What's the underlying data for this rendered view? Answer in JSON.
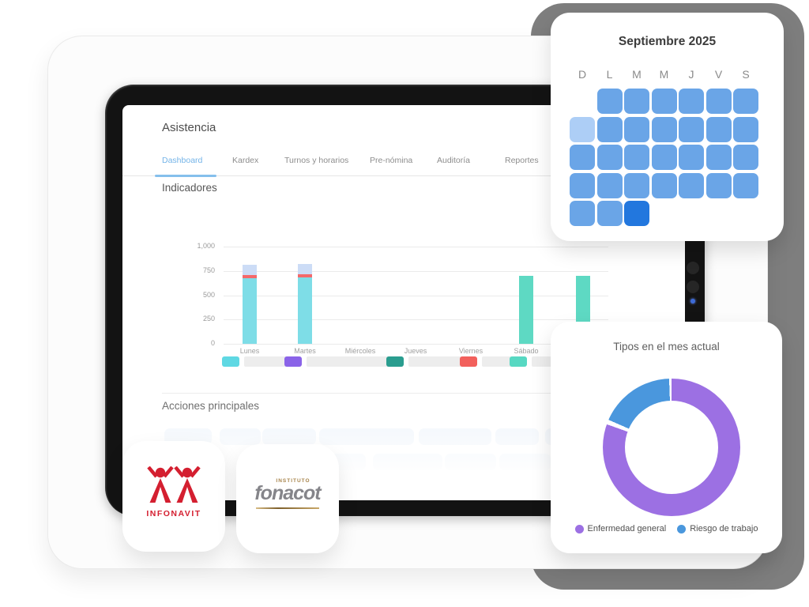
{
  "page": {
    "background": "#ffffff",
    "shadow_color": "#7e7e7e"
  },
  "dashboard": {
    "title": "Asistencia",
    "tabs": [
      {
        "label": "Dashboard",
        "active": true
      },
      {
        "label": "Kardex",
        "active": false
      },
      {
        "label": "Turnos y horarios",
        "active": false
      },
      {
        "label": "Pre-nómina",
        "active": false
      },
      {
        "label": "Auditoría",
        "active": false
      },
      {
        "label": "Reportes",
        "active": false
      }
    ],
    "active_tab_color": "#74b4e8",
    "sections": {
      "indicators": "Indicadores",
      "actions": "Acciones principales"
    }
  },
  "chart_data": {
    "type": "bar",
    "stacked": true,
    "title": "",
    "categories": [
      "Lunes",
      "Martes",
      "Miércoles",
      "Jueves",
      "Viernes",
      "Sábado",
      ""
    ],
    "series": [
      {
        "name": "",
        "color": "#7edde7",
        "values": [
          675,
          680,
          0,
          0,
          0,
          0,
          0
        ]
      },
      {
        "name": "",
        "color": "#f4696b",
        "values": [
          35,
          35,
          0,
          0,
          0,
          0,
          0
        ]
      },
      {
        "name": "",
        "color": "#ccdcf6",
        "values": [
          105,
          105,
          0,
          0,
          0,
          0,
          0
        ]
      },
      {
        "name": "",
        "color": "#5ed9c3",
        "values": [
          0,
          0,
          0,
          0,
          0,
          700,
          700
        ]
      }
    ],
    "ylim": [
      0,
      1000
    ],
    "yticks": [
      "0",
      "250",
      "500",
      "750",
      "1,000"
    ],
    "grid": true,
    "legend_chip_colors": [
      "#5fd8e3",
      "#8a63e8",
      "#2a9d8f",
      "#f2605c",
      "#57d8c2"
    ],
    "legend_labels_visible": false
  },
  "calendar_card": {
    "title": "Septiembre 2025",
    "day_headers": [
      "D",
      "L",
      "M",
      "M",
      "J",
      "V",
      "S"
    ],
    "cell_colors": {
      "mid": "#6aa5e7",
      "light": "#adcef6",
      "dark": "#2277de"
    },
    "weeks": [
      [
        "none",
        "mid",
        "mid",
        "mid",
        "mid",
        "mid",
        "mid"
      ],
      [
        "light",
        "mid",
        "mid",
        "mid",
        "mid",
        "mid",
        "mid"
      ],
      [
        "mid",
        "mid",
        "mid",
        "mid",
        "mid",
        "mid",
        "mid"
      ],
      [
        "mid",
        "mid",
        "mid",
        "mid",
        "mid",
        "mid",
        "mid"
      ],
      [
        "mid",
        "mid",
        "dark",
        "none",
        "none",
        "none",
        "none"
      ]
    ]
  },
  "donut_card": {
    "title": "Tipos en el mes actual",
    "chart_data": {
      "type": "pie",
      "slices": [
        {
          "label": "Enfermedad general",
          "value": 81,
          "color": "#9c70e3"
        },
        {
          "label": "Riesgo de trabajo",
          "value": 19,
          "color": "#4a97dd"
        }
      ]
    }
  },
  "apps": {
    "infonavit": {
      "label": "INFONAVIT",
      "color": "#d41f30"
    },
    "fonacot": {
      "institute": "INSTITUTO",
      "name": "fonacot",
      "accent": "#a8854c",
      "text_color": "#85858a"
    }
  }
}
